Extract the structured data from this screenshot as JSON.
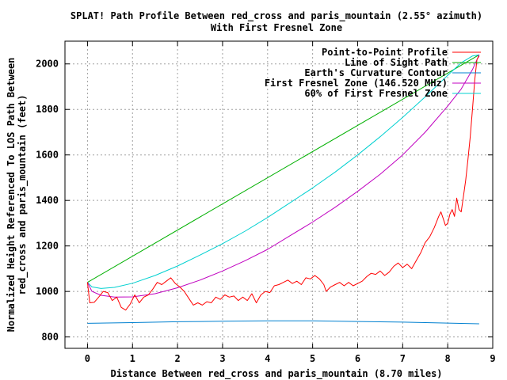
{
  "chart_data": {
    "type": "line",
    "title": "SPLAT! Path Profile Between red_cross and paris_mountain (2.55° azimuth)",
    "subtitle": "With First Fresnel Zone",
    "xlabel": "Distance Between red_cross and paris_mountain (8.70 miles)",
    "ylabel_line1": "Normalized Height Referenced To LOS Path Between",
    "ylabel_line2": "red_cross and paris_mountain (feet)",
    "xlim": [
      -0.5,
      9
    ],
    "ylim": [
      750,
      2100
    ],
    "xticks": [
      0,
      1,
      2,
      3,
      4,
      5,
      6,
      7,
      8,
      9
    ],
    "yticks": [
      800,
      1000,
      1200,
      1400,
      1600,
      1800,
      2000
    ],
    "grid": true,
    "legend_position": "top-right",
    "series": [
      {
        "name": "Point-to-Point Profile",
        "color": "#ff0000",
        "points": [
          [
            0,
            1040
          ],
          [
            0.05,
            950
          ],
          [
            0.15,
            952
          ],
          [
            0.25,
            975
          ],
          [
            0.35,
            1000
          ],
          [
            0.45,
            995
          ],
          [
            0.55,
            960
          ],
          [
            0.65,
            975
          ],
          [
            0.75,
            930
          ],
          [
            0.85,
            918
          ],
          [
            0.95,
            945
          ],
          [
            1.05,
            985
          ],
          [
            1.15,
            950
          ],
          [
            1.25,
            975
          ],
          [
            1.35,
            985
          ],
          [
            1.45,
            1010
          ],
          [
            1.55,
            1040
          ],
          [
            1.65,
            1030
          ],
          [
            1.75,
            1045
          ],
          [
            1.85,
            1060
          ],
          [
            1.95,
            1035
          ],
          [
            2.05,
            1020
          ],
          [
            2.15,
            1000
          ],
          [
            2.25,
            970
          ],
          [
            2.35,
            940
          ],
          [
            2.45,
            950
          ],
          [
            2.55,
            940
          ],
          [
            2.65,
            955
          ],
          [
            2.75,
            950
          ],
          [
            2.85,
            975
          ],
          [
            2.95,
            965
          ],
          [
            3.05,
            985
          ],
          [
            3.15,
            975
          ],
          [
            3.25,
            980
          ],
          [
            3.35,
            960
          ],
          [
            3.45,
            975
          ],
          [
            3.55,
            960
          ],
          [
            3.65,
            990
          ],
          [
            3.75,
            950
          ],
          [
            3.85,
            985
          ],
          [
            3.95,
            1000
          ],
          [
            4.05,
            995
          ],
          [
            4.15,
            1025
          ],
          [
            4.25,
            1030
          ],
          [
            4.35,
            1040
          ],
          [
            4.45,
            1050
          ],
          [
            4.55,
            1035
          ],
          [
            4.65,
            1045
          ],
          [
            4.75,
            1030
          ],
          [
            4.85,
            1060
          ],
          [
            4.95,
            1055
          ],
          [
            5.05,
            1070
          ],
          [
            5.15,
            1055
          ],
          [
            5.25,
            1030
          ],
          [
            5.3,
            1000
          ],
          [
            5.4,
            1020
          ],
          [
            5.5,
            1030
          ],
          [
            5.6,
            1040
          ],
          [
            5.7,
            1025
          ],
          [
            5.8,
            1040
          ],
          [
            5.9,
            1025
          ],
          [
            6.0,
            1035
          ],
          [
            6.1,
            1045
          ],
          [
            6.2,
            1065
          ],
          [
            6.3,
            1080
          ],
          [
            6.4,
            1075
          ],
          [
            6.5,
            1090
          ],
          [
            6.6,
            1070
          ],
          [
            6.7,
            1085
          ],
          [
            6.8,
            1110
          ],
          [
            6.9,
            1125
          ],
          [
            7.0,
            1105
          ],
          [
            7.1,
            1120
          ],
          [
            7.2,
            1100
          ],
          [
            7.3,
            1135
          ],
          [
            7.4,
            1170
          ],
          [
            7.5,
            1215
          ],
          [
            7.6,
            1240
          ],
          [
            7.7,
            1280
          ],
          [
            7.8,
            1330
          ],
          [
            7.85,
            1350
          ],
          [
            7.9,
            1320
          ],
          [
            7.95,
            1290
          ],
          [
            8.0,
            1300
          ],
          [
            8.05,
            1340
          ],
          [
            8.1,
            1360
          ],
          [
            8.15,
            1330
          ],
          [
            8.2,
            1410
          ],
          [
            8.25,
            1360
          ],
          [
            8.3,
            1350
          ],
          [
            8.35,
            1420
          ],
          [
            8.4,
            1490
          ],
          [
            8.45,
            1580
          ],
          [
            8.5,
            1680
          ],
          [
            8.55,
            1800
          ],
          [
            8.6,
            1930
          ],
          [
            8.65,
            2020
          ],
          [
            8.7,
            2035
          ]
        ]
      },
      {
        "name": "Line of Sight Path",
        "color": "#00b000",
        "points": [
          [
            0,
            1040
          ],
          [
            8.7,
            2040
          ]
        ]
      },
      {
        "name": "Earth's Curvature Contour",
        "color": "#0080d0",
        "points": [
          [
            0,
            860
          ],
          [
            1,
            863
          ],
          [
            2,
            867
          ],
          [
            3,
            869
          ],
          [
            4,
            871
          ],
          [
            5,
            871
          ],
          [
            6,
            868
          ],
          [
            7,
            865
          ],
          [
            8,
            861
          ],
          [
            8.7,
            858
          ]
        ]
      },
      {
        "name": "First Fresnel Zone (146.520 MHz)",
        "color": "#c000c0",
        "points": [
          [
            0,
            1040
          ],
          [
            0.1,
            1000
          ],
          [
            0.3,
            983
          ],
          [
            0.6,
            975
          ],
          [
            1,
            976
          ],
          [
            1.5,
            990
          ],
          [
            2,
            1016
          ],
          [
            2.5,
            1050
          ],
          [
            3,
            1090
          ],
          [
            3.5,
            1135
          ],
          [
            4,
            1185
          ],
          [
            4.5,
            1245
          ],
          [
            5,
            1305
          ],
          [
            5.5,
            1370
          ],
          [
            6,
            1440
          ],
          [
            6.5,
            1515
          ],
          [
            7,
            1600
          ],
          [
            7.5,
            1700
          ],
          [
            8,
            1815
          ],
          [
            8.3,
            1890
          ],
          [
            8.55,
            1975
          ],
          [
            8.7,
            2040
          ]
        ]
      },
      {
        "name": "60% of First Fresnel Zone",
        "color": "#00d0d0",
        "points": [
          [
            0,
            1040
          ],
          [
            0.1,
            1020
          ],
          [
            0.3,
            1013
          ],
          [
            0.6,
            1018
          ],
          [
            1,
            1036
          ],
          [
            1.5,
            1070
          ],
          [
            2,
            1112
          ],
          [
            2.5,
            1160
          ],
          [
            3,
            1210
          ],
          [
            3.5,
            1265
          ],
          [
            4,
            1325
          ],
          [
            4.5,
            1390
          ],
          [
            5,
            1455
          ],
          [
            5.5,
            1525
          ],
          [
            6,
            1600
          ],
          [
            6.5,
            1680
          ],
          [
            7,
            1765
          ],
          [
            7.5,
            1855
          ],
          [
            8,
            1950
          ],
          [
            8.3,
            2005
          ],
          [
            8.55,
            2035
          ],
          [
            8.7,
            2040
          ]
        ]
      }
    ]
  }
}
